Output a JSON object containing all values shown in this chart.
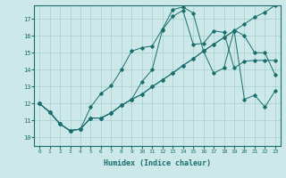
{
  "xlabel": "Humidex (Indice chaleur)",
  "bg_color": "#cce8e8",
  "line_color": "#1a6e6e",
  "grid_color": "#a8cece",
  "xlim": [
    -0.5,
    23.5
  ],
  "ylim": [
    9.5,
    17.8
  ],
  "yticks": [
    10,
    11,
    12,
    13,
    14,
    15,
    16,
    17
  ],
  "xticks": [
    0,
    1,
    2,
    3,
    4,
    5,
    6,
    7,
    8,
    9,
    10,
    11,
    12,
    13,
    14,
    15,
    16,
    17,
    18,
    19,
    20,
    21,
    22,
    23
  ],
  "line1_x": [
    0,
    1,
    2,
    3,
    4,
    5,
    6,
    7,
    8,
    9,
    10,
    11,
    12,
    13,
    14,
    15,
    16,
    17,
    18,
    19,
    20,
    21,
    22,
    23
  ],
  "line1_y": [
    12.0,
    11.5,
    10.8,
    10.4,
    10.5,
    11.15,
    11.15,
    11.45,
    11.9,
    12.25,
    12.55,
    13.0,
    13.4,
    13.8,
    14.25,
    14.65,
    15.1,
    15.5,
    15.9,
    16.3,
    16.7,
    17.1,
    17.4,
    17.8
  ],
  "line2_x": [
    0,
    1,
    2,
    3,
    4,
    5,
    6,
    7,
    8,
    9,
    10,
    11,
    12,
    13,
    14,
    15,
    16,
    17,
    18,
    19,
    20,
    21,
    22,
    23
  ],
  "line2_y": [
    12.0,
    11.5,
    10.8,
    10.4,
    10.5,
    11.15,
    11.15,
    11.45,
    11.9,
    12.25,
    12.55,
    13.0,
    13.4,
    13.8,
    14.25,
    14.65,
    15.1,
    15.5,
    15.9,
    16.3,
    12.25,
    12.5,
    11.8,
    12.75
  ],
  "line3_x": [
    0,
    1,
    2,
    3,
    4,
    5,
    6,
    7,
    8,
    9,
    10,
    11,
    12,
    13,
    14,
    15,
    16,
    17,
    18,
    19,
    20,
    21,
    22,
    23
  ],
  "line3_y": [
    12.0,
    11.5,
    10.8,
    10.4,
    10.5,
    11.15,
    11.15,
    11.45,
    11.9,
    12.25,
    13.3,
    14.0,
    16.35,
    17.15,
    17.5,
    15.5,
    15.55,
    16.3,
    16.2,
    14.1,
    14.5,
    14.55,
    14.55,
    14.55
  ],
  "line4_x": [
    0,
    1,
    2,
    3,
    4,
    5,
    6,
    7,
    8,
    9,
    10,
    11,
    12,
    13,
    14,
    15,
    16,
    17,
    18,
    19,
    20,
    21,
    22,
    23
  ],
  "line4_y": [
    12.0,
    11.5,
    10.8,
    10.4,
    10.5,
    11.8,
    12.6,
    13.05,
    14.0,
    15.1,
    15.3,
    15.4,
    16.4,
    17.55,
    17.7,
    17.35,
    15.1,
    13.8,
    14.1,
    16.35,
    16.0,
    15.0,
    15.0,
    13.7
  ]
}
